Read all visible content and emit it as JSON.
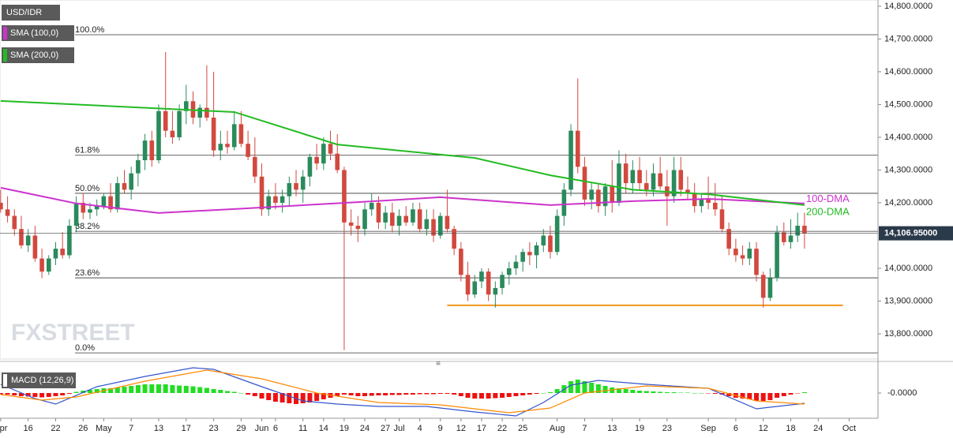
{
  "chart_data": [
    {
      "type": "candlestick",
      "title": "USD/IDR",
      "xlim": [
        -0.1,
        127.7
      ],
      "ylim": [
        13723,
        14819
      ],
      "xticks": [
        {
          "value": 0,
          "label": "Apr"
        },
        {
          "value": 4,
          "label": "16"
        },
        {
          "value": 8,
          "label": "22"
        },
        {
          "value": 12,
          "label": "26"
        },
        {
          "value": 15,
          "label": "May"
        },
        {
          "value": 19,
          "label": "7"
        },
        {
          "value": 23,
          "label": "13"
        },
        {
          "value": 27,
          "label": "17"
        },
        {
          "value": 31,
          "label": "23"
        },
        {
          "value": 35,
          "label": "29"
        },
        {
          "value": 38,
          "label": "Jun"
        },
        {
          "value": 40,
          "label": "6"
        },
        {
          "value": 44,
          "label": "11"
        },
        {
          "value": 47,
          "label": "14"
        },
        {
          "value": 50,
          "label": "19"
        },
        {
          "value": 53,
          "label": "24"
        },
        {
          "value": 56,
          "label": "27"
        },
        {
          "value": 58,
          "label": "Jul"
        },
        {
          "value": 61,
          "label": "4"
        },
        {
          "value": 64,
          "label": "9"
        },
        {
          "value": 67,
          "label": "12"
        },
        {
          "value": 70,
          "label": "17"
        },
        {
          "value": 73,
          "label": "22"
        },
        {
          "value": 76,
          "label": "25"
        },
        {
          "value": 81,
          "label": "Aug"
        },
        {
          "value": 85,
          "label": "7"
        },
        {
          "value": 89,
          "label": "13"
        },
        {
          "value": 93,
          "label": "19"
        },
        {
          "value": 97,
          "label": "23"
        },
        {
          "value": 103,
          "label": "Sep"
        },
        {
          "value": 107,
          "label": "6"
        },
        {
          "value": 111,
          "label": "12"
        },
        {
          "value": 115,
          "label": "18"
        },
        {
          "value": 119,
          "label": "24"
        },
        {
          "value": 123.5,
          "label": "Oct"
        }
      ],
      "yticks": [
        {
          "value": 14800,
          "label": "14,800.0000"
        },
        {
          "value": 14700,
          "label": "14,700.0000"
        },
        {
          "value": 14600,
          "label": "14,600.0000"
        },
        {
          "value": 14500,
          "label": "14,500.0000"
        },
        {
          "value": 14400,
          "label": "14,400.0000"
        },
        {
          "value": 14300,
          "label": "14,300.0000"
        },
        {
          "value": 14200,
          "label": "14,200.0000"
        },
        {
          "value": 14000,
          "label": "14,000.0000"
        },
        {
          "value": 13900,
          "label": "13,900.0000"
        },
        {
          "value": 13800,
          "label": "13,800.0000"
        }
      ],
      "up_color": "#2a8a5c",
      "down_color": "#d2493f",
      "open": [
        14200,
        14180,
        14160,
        14120,
        14070,
        14100,
        14030,
        13990,
        14030,
        14060,
        14040,
        14130,
        14200,
        14170,
        14180,
        14190,
        14220,
        14180,
        14260,
        14240,
        14290,
        14330,
        14390,
        14330,
        14480,
        14420,
        14400,
        14480,
        14510,
        14460,
        14490,
        14460,
        14360,
        14380,
        14370,
        14440,
        14380,
        14340,
        14280,
        14180,
        14220,
        14200,
        14220,
        14260,
        14240,
        14280,
        14340,
        14320,
        14380,
        14350,
        14300,
        14140,
        14130,
        14120,
        14180,
        14200,
        14140,
        14170,
        14130,
        14160,
        14140,
        14180,
        14120,
        14150,
        14100,
        14160,
        14120,
        14060,
        13980,
        13920,
        13960,
        13990,
        13920,
        13940,
        13980,
        14000,
        14020,
        14050,
        14040,
        14070,
        14100,
        14050,
        14160,
        14240,
        14420,
        14310,
        14210,
        14240,
        14190,
        14250,
        14200,
        14320,
        14260,
        14300,
        14260,
        14240,
        14290,
        14250,
        14220,
        14300,
        14240,
        14230,
        14190,
        14210,
        14200,
        14180,
        14120,
        14060,
        14040,
        14030,
        14060,
        13980,
        13910,
        13970,
        14110,
        14080,
        14100,
        14130
      ],
      "high": [
        14240,
        14220,
        14180,
        14160,
        14120,
        14130,
        14060,
        14040,
        14080,
        14110,
        14150,
        14220,
        14230,
        14200,
        14210,
        14230,
        14260,
        14280,
        14300,
        14310,
        14350,
        14410,
        14420,
        14500,
        14660,
        14480,
        14500,
        14560,
        14540,
        14500,
        14620,
        14600,
        14420,
        14420,
        14480,
        14480,
        14420,
        14400,
        14320,
        14240,
        14260,
        14240,
        14280,
        14300,
        14300,
        14350,
        14380,
        14400,
        14420,
        14410,
        14310,
        14180,
        14160,
        14200,
        14230,
        14220,
        14190,
        14200,
        14180,
        14190,
        14200,
        14200,
        14180,
        14180,
        14170,
        14240,
        14130,
        14080,
        14020,
        13980,
        14000,
        14000,
        13960,
        13990,
        14020,
        14040,
        14060,
        14080,
        14080,
        14120,
        14130,
        14180,
        14260,
        14440,
        14580,
        14340,
        14260,
        14260,
        14260,
        14330,
        14360,
        14350,
        14330,
        14340,
        14300,
        14320,
        14340,
        14300,
        14340,
        14340,
        14280,
        14260,
        14230,
        14280,
        14260,
        14220,
        14140,
        14090,
        14070,
        14080,
        14080,
        13990,
        14000,
        14130,
        14140,
        14150,
        14170,
        14170
      ],
      "low": [
        14170,
        14140,
        14100,
        14060,
        14050,
        14020,
        13970,
        13980,
        14010,
        14030,
        14030,
        14110,
        14150,
        14150,
        14160,
        14180,
        14170,
        14170,
        14230,
        14210,
        14250,
        14300,
        14310,
        14320,
        14400,
        14380,
        14390,
        14440,
        14440,
        14430,
        14450,
        14340,
        14330,
        14350,
        14360,
        14370,
        14330,
        14260,
        14160,
        14160,
        14180,
        14170,
        14190,
        14220,
        14200,
        14250,
        14300,
        14300,
        14330,
        14290,
        13750,
        14100,
        14080,
        14100,
        14160,
        14120,
        14120,
        14110,
        14100,
        14130,
        14130,
        14110,
        14100,
        14080,
        14090,
        14110,
        14040,
        13960,
        13900,
        13910,
        13940,
        13900,
        13880,
        13920,
        13950,
        13980,
        13990,
        14010,
        14000,
        14050,
        14030,
        14040,
        14130,
        14220,
        14290,
        14190,
        14180,
        14170,
        14160,
        14170,
        14190,
        14230,
        14230,
        14240,
        14220,
        14220,
        14240,
        14130,
        14200,
        14220,
        14210,
        14170,
        14170,
        14180,
        14160,
        14110,
        14040,
        14020,
        14010,
        14010,
        13960,
        13880,
        13900,
        13960,
        14070,
        14060,
        14080,
        14060
      ],
      "close": [
        14180,
        14160,
        14120,
        14070,
        14100,
        14030,
        13990,
        14030,
        14060,
        14040,
        14130,
        14200,
        14170,
        14180,
        14190,
        14220,
        14180,
        14260,
        14240,
        14290,
        14330,
        14390,
        14330,
        14480,
        14420,
        14400,
        14480,
        14510,
        14460,
        14490,
        14460,
        14360,
        14380,
        14370,
        14440,
        14380,
        14340,
        14280,
        14180,
        14220,
        14200,
        14220,
        14260,
        14240,
        14280,
        14340,
        14320,
        14380,
        14350,
        14300,
        14140,
        14130,
        14120,
        14180,
        14200,
        14140,
        14170,
        14130,
        14160,
        14140,
        14180,
        14120,
        14150,
        14100,
        14160,
        14120,
        14060,
        13980,
        13920,
        13960,
        13990,
        13920,
        13940,
        13980,
        14000,
        14020,
        14050,
        14040,
        14070,
        14100,
        14050,
        14160,
        14240,
        14420,
        14310,
        14210,
        14240,
        14190,
        14250,
        14200,
        14320,
        14260,
        14300,
        14260,
        14240,
        14290,
        14250,
        14220,
        14300,
        14240,
        14230,
        14190,
        14210,
        14200,
        14180,
        14120,
        14060,
        14040,
        14030,
        14060,
        13980,
        13910,
        13970,
        14110,
        14080,
        14100,
        14130,
        14107
      ],
      "series": [
        {
          "name": "SMA (100,0)",
          "annotation": "100-DMA",
          "color": "#cc33cc",
          "x": [
            0,
            11,
            23,
            34,
            52,
            64,
            80,
            92,
            103,
            117
          ],
          "values": [
            14246,
            14198,
            14169,
            14181,
            14202,
            14217,
            14193,
            14205,
            14212,
            14198
          ]
        },
        {
          "name": "SMA (200,0)",
          "annotation": "200-DMA",
          "color": "#22bb22",
          "x": [
            0,
            34,
            49,
            69,
            80,
            92,
            103,
            117
          ],
          "values": [
            14511,
            14477,
            14378,
            14337,
            14284,
            14240,
            14226,
            14193
          ]
        }
      ],
      "levels": [
        {
          "label": "100.0%",
          "value": 14713
        },
        {
          "label": "61.8%",
          "value": 14345
        },
        {
          "label": "50.0%",
          "value": 14229
        },
        {
          "label": "38.2%",
          "value": 14113
        },
        {
          "label": "23.6%",
          "value": 13971
        },
        {
          "label": "0.0%",
          "value": 13742
        }
      ],
      "support": {
        "value": 13887,
        "x": [
          65,
          122.6
        ],
        "color": "#f0941a"
      },
      "last_price": {
        "value": 14106.95,
        "label": "14,106.95000"
      },
      "watermark": [
        "FX",
        "STREET"
      ]
    },
    {
      "type": "macd",
      "title": "MACD (12,26,9)",
      "ylim": [
        -64,
        72
      ],
      "yticks": [
        {
          "value": 0,
          "label": "-0.0000"
        }
      ],
      "up_color": "#22dd22",
      "down_color": "#ee1111",
      "histogram": [
        -3,
        -4,
        -6,
        -8,
        -9,
        -10,
        -11,
        -10,
        -8,
        -6,
        -2,
        3,
        6,
        8,
        10,
        12,
        12,
        14,
        16,
        18,
        20,
        22,
        22,
        22,
        22,
        20,
        19,
        18,
        17,
        15,
        13,
        10,
        8,
        5,
        3,
        0,
        -4,
        -8,
        -14,
        -18,
        -22,
        -24,
        -26,
        -28,
        -26,
        -24,
        -20,
        -16,
        -12,
        -8,
        -4,
        -6,
        -8,
        -8,
        -7,
        -6,
        -6,
        -5,
        -5,
        -4,
        -4,
        -3,
        -3,
        -3,
        -2,
        -2,
        -4,
        -8,
        -12,
        -14,
        -14,
        -14,
        -13,
        -12,
        -10,
        -8,
        -6,
        -4,
        -2,
        0,
        2,
        10,
        20,
        30,
        34,
        30,
        26,
        22,
        18,
        14,
        12,
        10,
        8,
        6,
        5,
        4,
        3,
        2,
        2,
        1,
        1,
        0,
        0,
        -1,
        -2,
        -4,
        -8,
        -12,
        -14,
        -16,
        -20,
        -20,
        -18,
        -12,
        -8,
        -4,
        -1,
        2
      ],
      "series": [
        {
          "color": "#3355cc",
          "x": [
            0,
            5,
            8,
            14,
            21,
            28,
            31,
            38,
            44,
            49,
            55,
            62,
            69,
            75,
            79,
            83,
            87,
            94,
            103,
            110,
            117
          ],
          "values": [
            22,
            -14,
            -28,
            16,
            42,
            64,
            60,
            16,
            -20,
            -28,
            -34,
            -34,
            -48,
            -58,
            -24,
            20,
            32,
            22,
            12,
            -40,
            -26
          ]
        },
        {
          "color": "#ff8800",
          "x": [
            0,
            6,
            11,
            21,
            30,
            38,
            46,
            55,
            64,
            74,
            80,
            85,
            94,
            103,
            110,
            117
          ],
          "values": [
            -4,
            -18,
            -10,
            30,
            58,
            36,
            0,
            -24,
            -30,
            -50,
            -38,
            0,
            18,
            12,
            -20,
            -28
          ]
        }
      ]
    }
  ]
}
